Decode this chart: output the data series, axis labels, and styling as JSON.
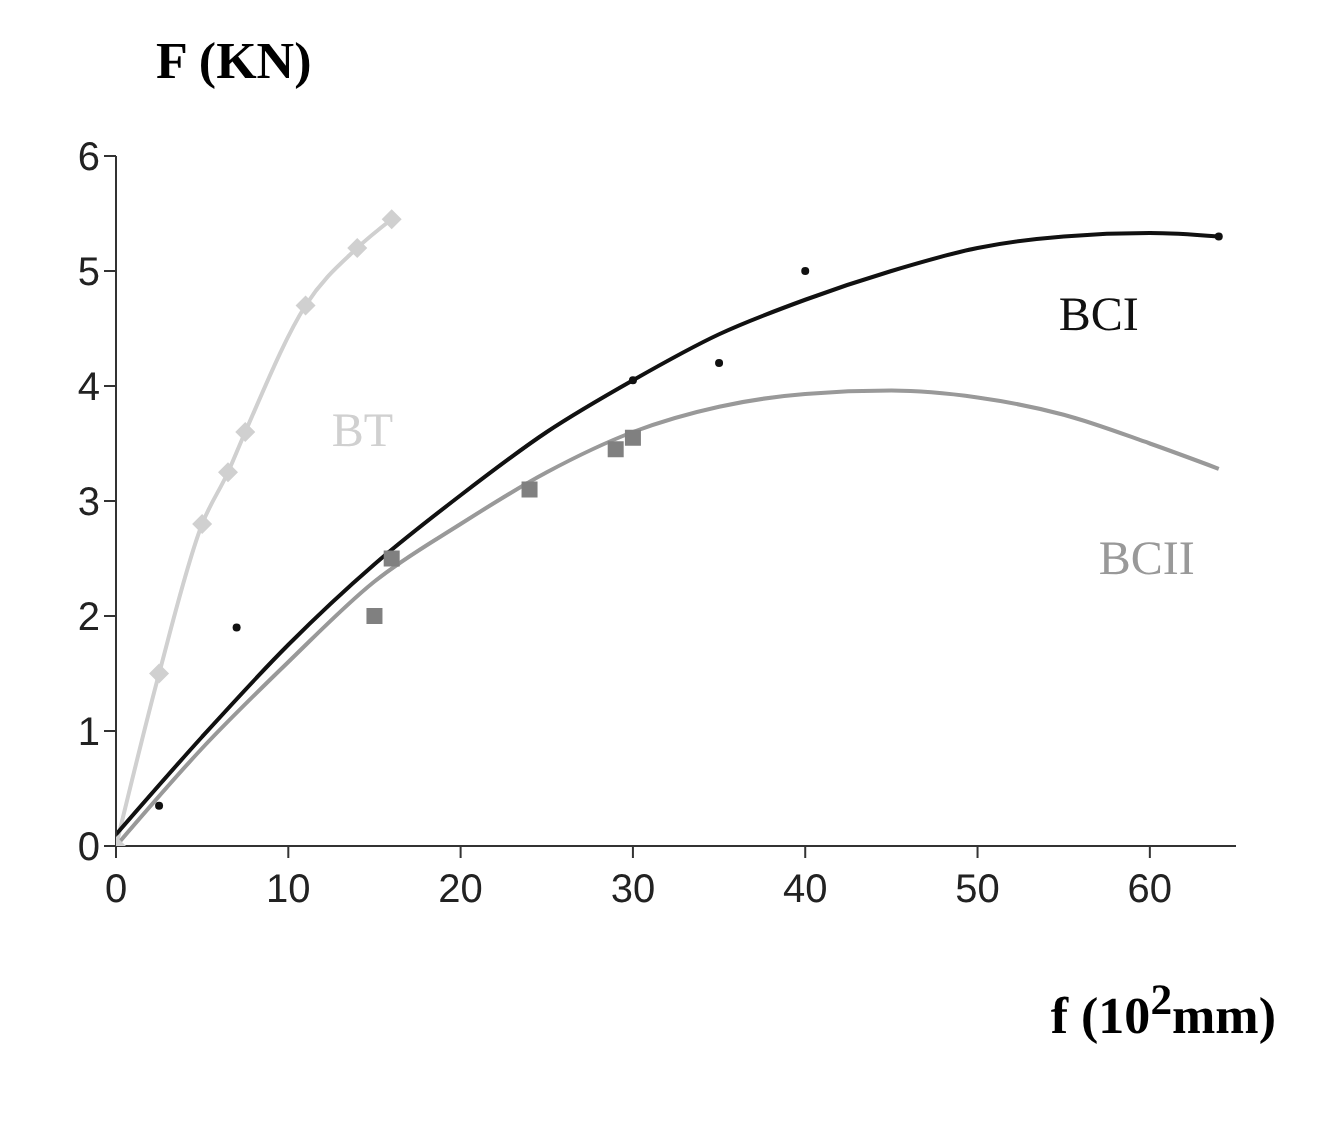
{
  "chart_data": {
    "type": "line",
    "xlabel": "f (10$^{2}$mm)",
    "ylabel": "F (KN)",
    "xlim": [
      0,
      65
    ],
    "xticks": [
      0,
      10,
      20,
      30,
      40,
      50,
      60
    ],
    "ylim": [
      0,
      6
    ],
    "yticks": [
      0,
      1,
      2,
      3,
      4,
      5,
      6
    ],
    "grid": false,
    "line_style": "solid",
    "series": [
      {
        "name": "BT",
        "marker": "diamond",
        "color": "#d0d0d0",
        "x": [
          0,
          2.5,
          5,
          6.5,
          7.5,
          11,
          14,
          16
        ],
        "values": [
          0,
          1.5,
          2.8,
          3.25,
          3.6,
          4.7,
          5.2,
          5.45
        ]
      },
      {
        "type": "scatter",
        "marker": "circle",
        "color": "#111111",
        "x": [
          2.5,
          7,
          30,
          35,
          40,
          64
        ],
        "values": [
          0.35,
          1.9,
          4.05,
          4.2,
          5.0,
          5.3
        ]
      },
      {
        "name": "BCI",
        "marker": "none",
        "color": "#111111",
        "x": [
          0,
          5,
          10,
          15,
          20,
          25,
          30,
          35,
          40,
          45,
          50,
          55,
          60,
          64
        ],
        "values": [
          0.1,
          0.95,
          1.75,
          2.45,
          3.05,
          3.6,
          4.05,
          4.45,
          4.75,
          5.0,
          5.2,
          5.3,
          5.33,
          5.3
        ]
      },
      {
        "type": "scatter",
        "marker": "square",
        "color": "#808080",
        "x": [
          15,
          16,
          24,
          29,
          30
        ],
        "values": [
          2.0,
          2.5,
          3.1,
          3.45,
          3.55
        ]
      },
      {
        "name": "BCII",
        "marker": "none",
        "color": "#999999",
        "x": [
          0,
          5,
          10,
          15,
          20,
          25,
          30,
          35,
          40,
          45,
          50,
          55,
          60,
          64
        ],
        "values": [
          0,
          0.85,
          1.6,
          2.3,
          2.8,
          3.25,
          3.6,
          3.82,
          3.93,
          3.96,
          3.9,
          3.75,
          3.5,
          3.28
        ]
      }
    ]
  }
}
